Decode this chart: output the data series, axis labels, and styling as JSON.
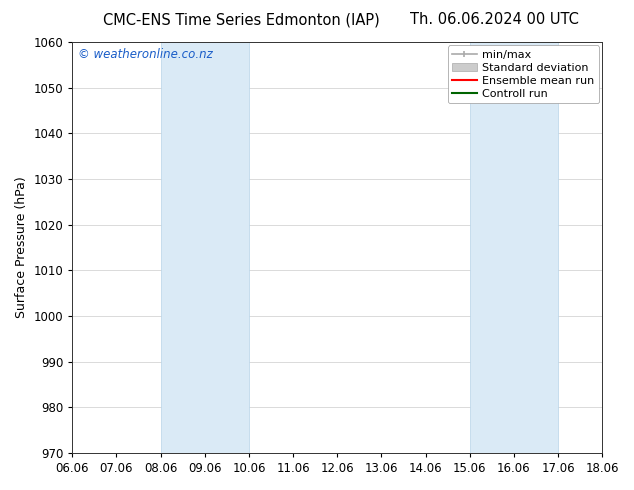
{
  "title_left": "CMC-ENS Time Series Edmonton (IAP)",
  "title_right": "Th. 06.06.2024 00 UTC",
  "ylabel": "Surface Pressure (hPa)",
  "ylim": [
    970,
    1060
  ],
  "yticks": [
    970,
    980,
    990,
    1000,
    1010,
    1020,
    1030,
    1040,
    1050,
    1060
  ],
  "xtick_labels": [
    "06.06",
    "07.06",
    "08.06",
    "09.06",
    "10.06",
    "11.06",
    "12.06",
    "13.06",
    "14.06",
    "15.06",
    "16.06",
    "17.06",
    "18.06"
  ],
  "xtick_positions": [
    0,
    1,
    2,
    3,
    4,
    5,
    6,
    7,
    8,
    9,
    10,
    11,
    12
  ],
  "xlim": [
    0,
    12
  ],
  "shaded_regions": [
    {
      "x_start": 2.0,
      "x_end": 4.0
    },
    {
      "x_start": 9.0,
      "x_end": 11.0
    }
  ],
  "shade_color": "#daeaf6",
  "shade_edge_color": "#b8d4e8",
  "watermark_text": "© weatheronline.co.nz",
  "watermark_color": "#1a5dc8",
  "background_color": "#ffffff",
  "grid_color": "#cccccc",
  "title_fontsize": 10.5,
  "axis_label_fontsize": 9,
  "tick_fontsize": 8.5,
  "legend_fontsize": 8
}
